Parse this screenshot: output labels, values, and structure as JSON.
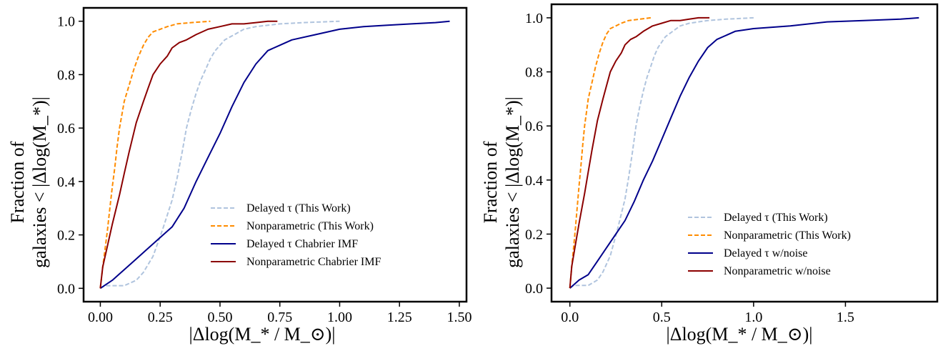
{
  "chart_data": [
    {
      "type": "line",
      "title": "",
      "xlabel": "|Δlog(M_* / M_⊙)|",
      "ylabel_line1": "Fraction of",
      "ylabel_line2": "galaxies < |Δlog(M_*)|",
      "xlim": [
        -0.07,
        1.53
      ],
      "ylim": [
        -0.05,
        1.05
      ],
      "xticks": [
        0.0,
        0.25,
        0.5,
        0.75,
        1.0,
        1.25,
        1.5
      ],
      "xtick_labels": [
        "0.00",
        "0.25",
        "0.50",
        "0.75",
        "1.00",
        "1.25",
        "1.50"
      ],
      "yticks": [
        0.0,
        0.2,
        0.4,
        0.6,
        0.8,
        1.0
      ],
      "ytick_labels": [
        "0.0",
        "0.2",
        "0.4",
        "0.6",
        "0.8",
        "1.0"
      ],
      "grid": false,
      "legend": "lower-right",
      "series": [
        {
          "name": "Delayed τ (This Work)",
          "style": "dashed",
          "color": "#b0c4de",
          "x": [
            0.0,
            0.02,
            0.1,
            0.15,
            0.18,
            0.22,
            0.26,
            0.3,
            0.32,
            0.34,
            0.36,
            0.38,
            0.4,
            0.42,
            0.44,
            0.46,
            0.48,
            0.52,
            0.56,
            0.6,
            0.65,
            0.75,
            0.85,
            1.0
          ],
          "y": [
            0.0,
            0.01,
            0.01,
            0.03,
            0.06,
            0.12,
            0.22,
            0.33,
            0.41,
            0.5,
            0.6,
            0.67,
            0.73,
            0.78,
            0.82,
            0.86,
            0.89,
            0.93,
            0.95,
            0.97,
            0.98,
            0.99,
            0.995,
            1.0
          ]
        },
        {
          "name": "Nonparametric (This Work)",
          "style": "dashed",
          "color": "#ff8c00",
          "x": [
            0.0,
            0.01,
            0.02,
            0.03,
            0.04,
            0.05,
            0.06,
            0.07,
            0.08,
            0.09,
            0.1,
            0.12,
            0.14,
            0.16,
            0.18,
            0.2,
            0.22,
            0.25,
            0.28,
            0.32,
            0.38,
            0.46
          ],
          "y": [
            0.0,
            0.08,
            0.15,
            0.22,
            0.3,
            0.38,
            0.45,
            0.53,
            0.6,
            0.65,
            0.7,
            0.76,
            0.82,
            0.87,
            0.91,
            0.94,
            0.96,
            0.97,
            0.98,
            0.99,
            0.995,
            1.0
          ]
        },
        {
          "name": "Delayed τ Chabrier IMF",
          "style": "solid",
          "color": "#00008b",
          "x": [
            0.0,
            0.05,
            0.1,
            0.15,
            0.2,
            0.25,
            0.3,
            0.35,
            0.4,
            0.45,
            0.5,
            0.55,
            0.6,
            0.65,
            0.7,
            0.75,
            0.8,
            0.9,
            1.0,
            1.1,
            1.2,
            1.3,
            1.4,
            1.46
          ],
          "y": [
            0.0,
            0.03,
            0.07,
            0.11,
            0.15,
            0.19,
            0.23,
            0.3,
            0.4,
            0.49,
            0.58,
            0.68,
            0.77,
            0.84,
            0.89,
            0.91,
            0.93,
            0.95,
            0.97,
            0.98,
            0.985,
            0.99,
            0.995,
            1.0
          ]
        },
        {
          "name": "Nonparametric Chabrier IMF",
          "style": "solid",
          "color": "#8b0000",
          "x": [
            0.0,
            0.01,
            0.03,
            0.05,
            0.08,
            0.1,
            0.12,
            0.15,
            0.18,
            0.2,
            0.22,
            0.25,
            0.28,
            0.3,
            0.33,
            0.36,
            0.4,
            0.45,
            0.5,
            0.55,
            0.6,
            0.65,
            0.7,
            0.74
          ],
          "y": [
            0.0,
            0.08,
            0.16,
            0.24,
            0.35,
            0.43,
            0.51,
            0.62,
            0.7,
            0.75,
            0.8,
            0.84,
            0.87,
            0.9,
            0.92,
            0.93,
            0.95,
            0.97,
            0.98,
            0.99,
            0.99,
            0.995,
            1.0,
            1.0
          ]
        }
      ]
    },
    {
      "type": "line",
      "title": "",
      "xlabel": "|Δlog(M_* / M_⊙)|",
      "ylabel_line1": "Fraction of",
      "ylabel_line2": "galaxies < |Δlog(M_*)|",
      "xlim": [
        -0.1,
        2.0
      ],
      "ylim": [
        -0.05,
        1.05
      ],
      "xticks": [
        0.0,
        0.5,
        1.0,
        1.5
      ],
      "xtick_labels": [
        "0.0",
        "0.5",
        "1.0",
        "1.5"
      ],
      "yticks": [
        0.0,
        0.2,
        0.4,
        0.6,
        0.8,
        1.0
      ],
      "ytick_labels": [
        "0.0",
        "0.2",
        "0.4",
        "0.6",
        "0.8",
        "1.0"
      ],
      "grid": false,
      "legend": "lower-right",
      "series": [
        {
          "name": "Delayed τ (This Work)",
          "style": "dashed",
          "color": "#b0c4de",
          "x": [
            0.0,
            0.02,
            0.1,
            0.15,
            0.18,
            0.22,
            0.26,
            0.3,
            0.32,
            0.34,
            0.36,
            0.38,
            0.4,
            0.42,
            0.44,
            0.46,
            0.48,
            0.52,
            0.56,
            0.6,
            0.65,
            0.75,
            0.85,
            1.0
          ],
          "y": [
            0.0,
            0.01,
            0.01,
            0.03,
            0.06,
            0.12,
            0.22,
            0.33,
            0.41,
            0.5,
            0.6,
            0.67,
            0.73,
            0.78,
            0.82,
            0.86,
            0.89,
            0.93,
            0.95,
            0.97,
            0.98,
            0.99,
            0.995,
            1.0
          ]
        },
        {
          "name": "Nonparametric (This Work)",
          "style": "dashed",
          "color": "#ff8c00",
          "x": [
            0.0,
            0.01,
            0.02,
            0.03,
            0.04,
            0.05,
            0.06,
            0.07,
            0.08,
            0.09,
            0.1,
            0.12,
            0.14,
            0.16,
            0.18,
            0.2,
            0.22,
            0.25,
            0.28,
            0.32,
            0.38,
            0.44
          ],
          "y": [
            0.0,
            0.08,
            0.15,
            0.22,
            0.3,
            0.38,
            0.45,
            0.53,
            0.6,
            0.65,
            0.7,
            0.76,
            0.82,
            0.87,
            0.91,
            0.94,
            0.96,
            0.97,
            0.98,
            0.99,
            0.995,
            1.0
          ]
        },
        {
          "name": "Delayed τ w/noise",
          "style": "solid",
          "color": "#00008b",
          "x": [
            0.0,
            0.05,
            0.1,
            0.15,
            0.2,
            0.25,
            0.3,
            0.35,
            0.4,
            0.45,
            0.5,
            0.55,
            0.6,
            0.65,
            0.7,
            0.75,
            0.8,
            0.9,
            1.0,
            1.2,
            1.4,
            1.6,
            1.8,
            1.9
          ],
          "y": [
            0.0,
            0.03,
            0.05,
            0.1,
            0.15,
            0.2,
            0.25,
            0.32,
            0.4,
            0.47,
            0.55,
            0.63,
            0.71,
            0.78,
            0.84,
            0.89,
            0.92,
            0.95,
            0.96,
            0.97,
            0.985,
            0.99,
            0.995,
            1.0
          ]
        },
        {
          "name": "Nonparametric w/noise",
          "style": "solid",
          "color": "#8b0000",
          "x": [
            0.0,
            0.01,
            0.03,
            0.05,
            0.08,
            0.1,
            0.12,
            0.15,
            0.18,
            0.2,
            0.22,
            0.25,
            0.28,
            0.3,
            0.33,
            0.36,
            0.4,
            0.45,
            0.5,
            0.55,
            0.6,
            0.65,
            0.7,
            0.76
          ],
          "y": [
            0.0,
            0.08,
            0.16,
            0.24,
            0.35,
            0.43,
            0.51,
            0.62,
            0.7,
            0.75,
            0.8,
            0.84,
            0.87,
            0.9,
            0.92,
            0.93,
            0.95,
            0.97,
            0.98,
            0.99,
            0.99,
            0.995,
            1.0,
            1.0
          ]
        }
      ]
    }
  ]
}
